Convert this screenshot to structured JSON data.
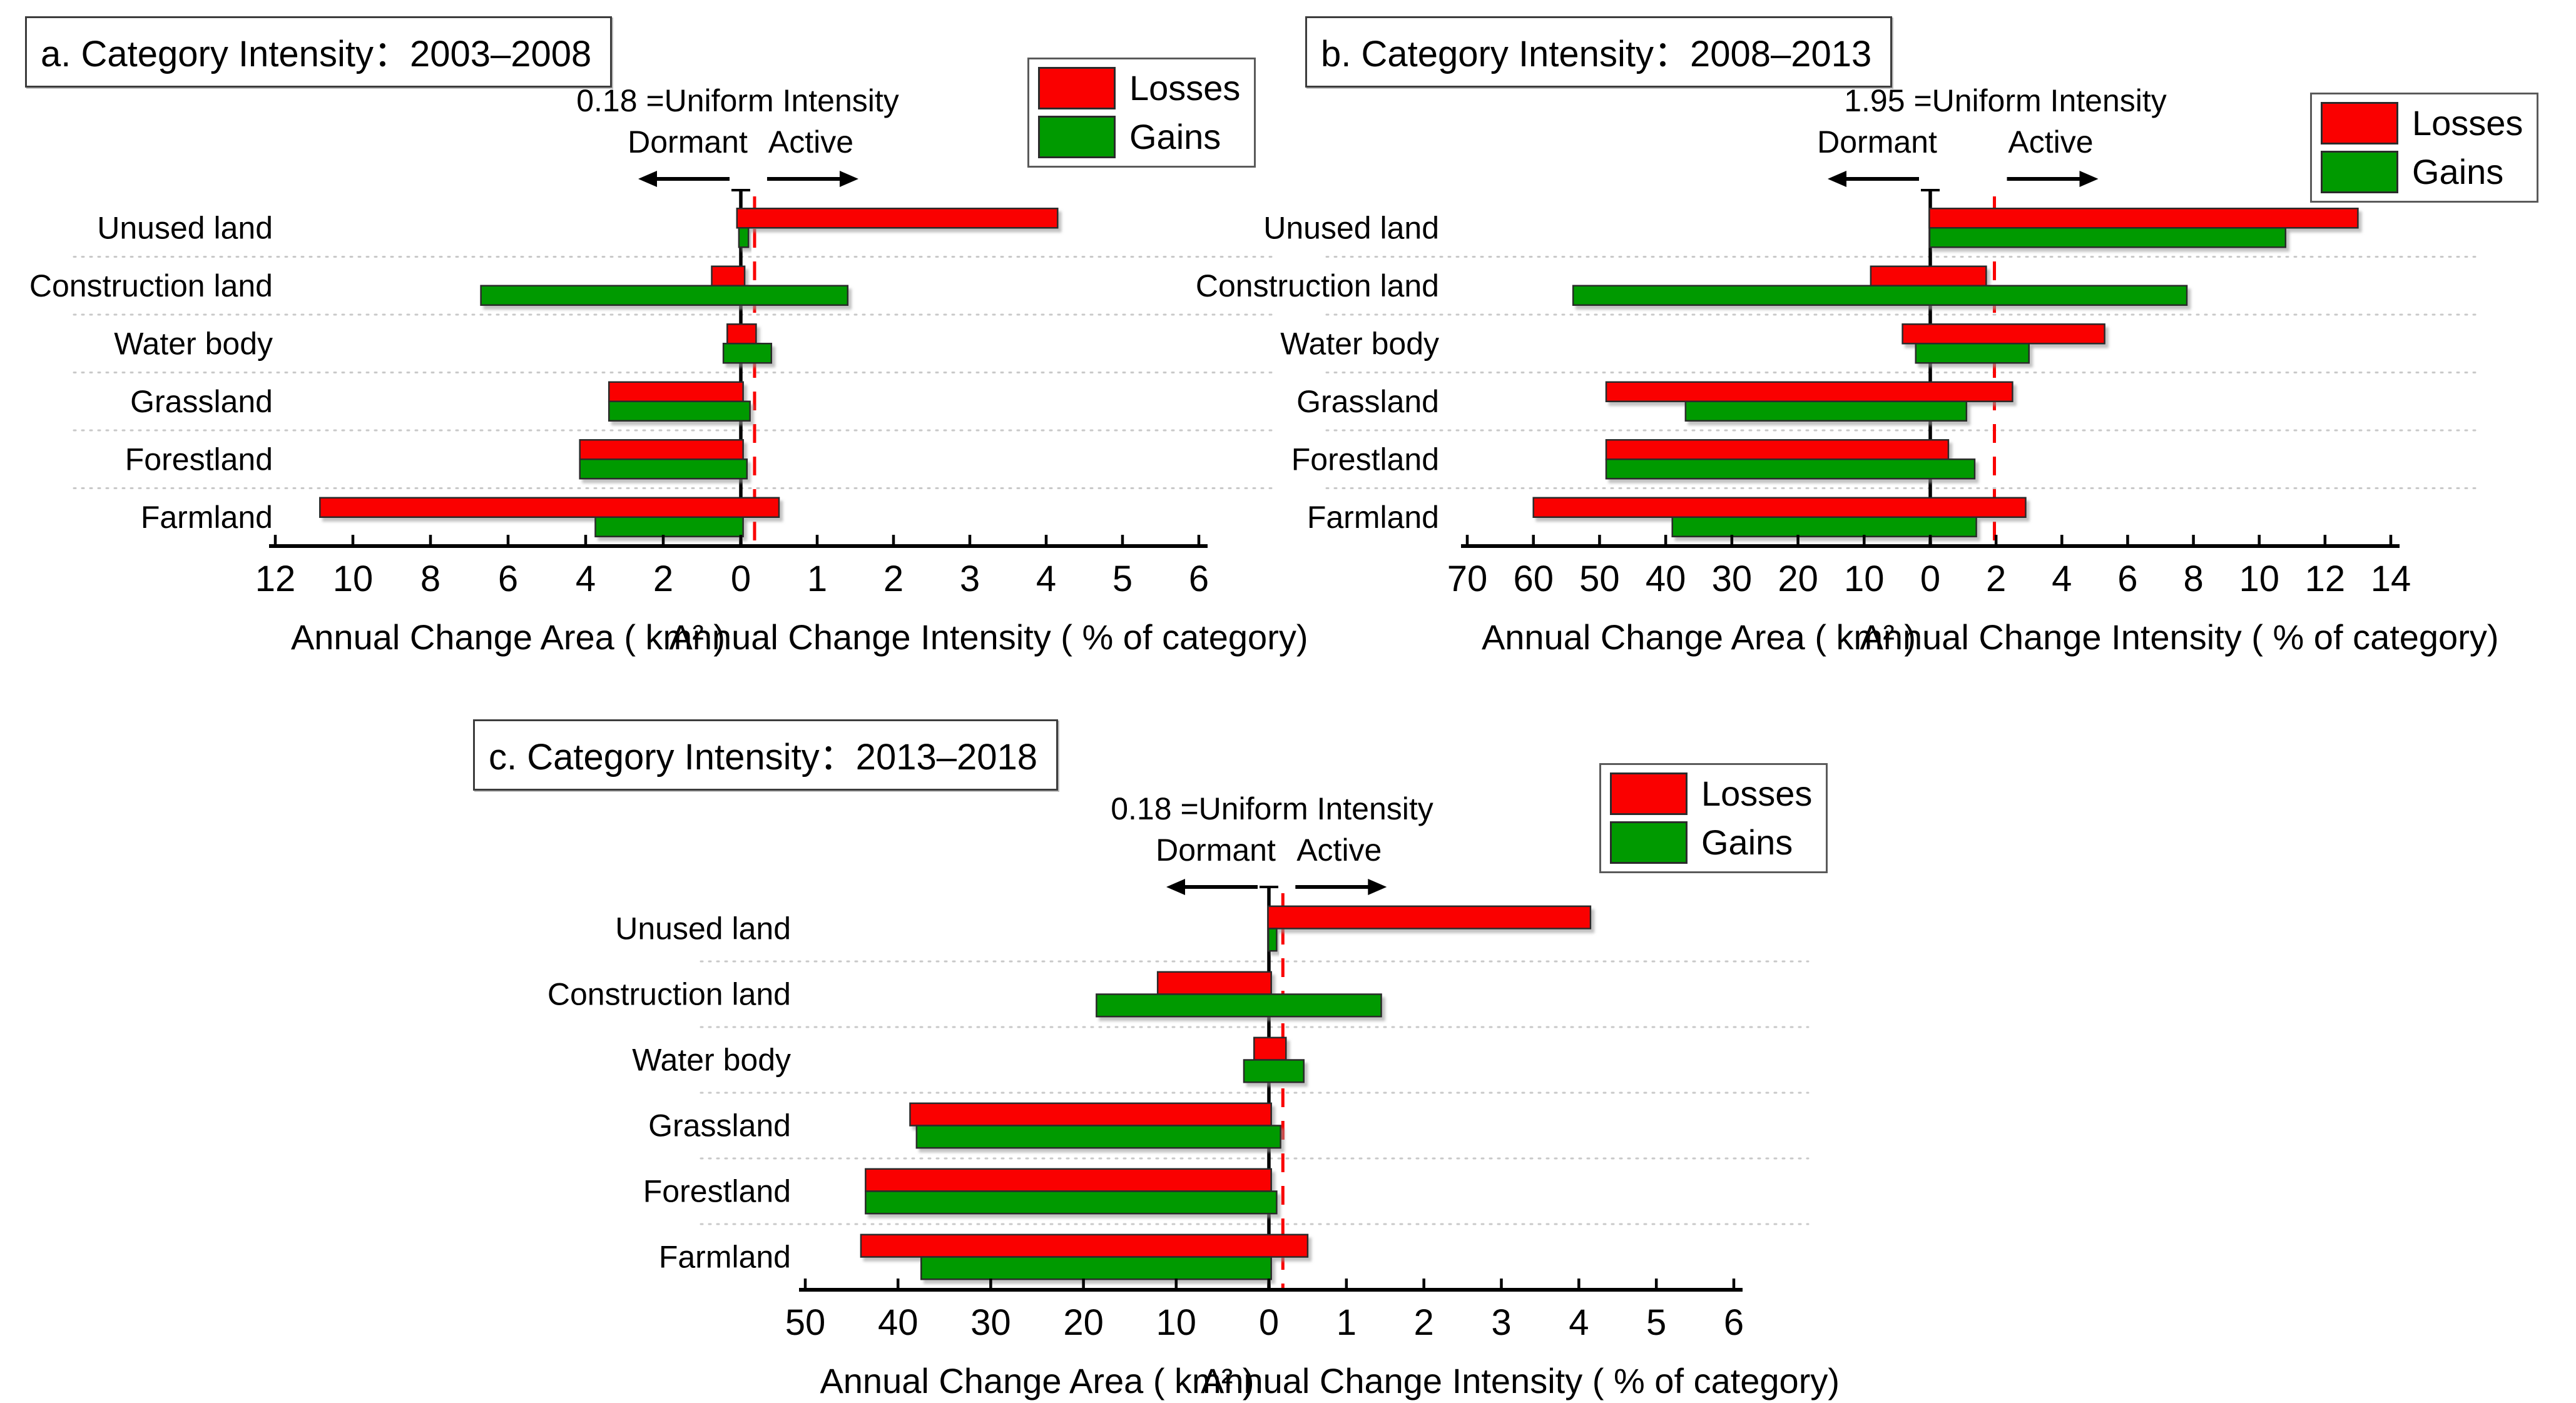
{
  "figure": {
    "legend": {
      "losses": "Losses",
      "gains": "Gains"
    },
    "colors": {
      "losses": "#fa0000",
      "gains": "#009a00",
      "uniform_line": "#fa0000",
      "axis": "#000000",
      "grid": "#c9c9c9",
      "bar_border": "#2a2a2a"
    },
    "annotations": {
      "dormant": "Dormant",
      "active": "Active"
    }
  },
  "chart_data": [
    {
      "id": "a",
      "type": "bar",
      "title": "a. Category Intensity：2003–2008",
      "uniform_intensity": 0.18,
      "uniform_label": "0.18 =Uniform Intensity",
      "area_axis": {
        "max": 12,
        "ticks": [
          12,
          10,
          8,
          6,
          4,
          2,
          0
        ],
        "label": "Annual Change Area ( km² )"
      },
      "intensity_axis": {
        "max": 6,
        "ticks": [
          1,
          2,
          3,
          4,
          5,
          6
        ],
        "label": "Annual Change Intensity ( % of category)"
      },
      "categories": [
        "Unused land",
        "Construction land",
        "Water body",
        "Grassland",
        "Forestland",
        "Farmland"
      ],
      "series": [
        {
          "name": "Losses",
          "area": [
            0.1,
            0.75,
            0.35,
            3.4,
            4.15,
            10.85
          ],
          "intensity": [
            4.15,
            0.05,
            0.2,
            0.03,
            0.03,
            0.5
          ]
        },
        {
          "name": "Gains",
          "area": [
            0.05,
            6.7,
            0.45,
            3.4,
            4.15,
            3.75
          ],
          "intensity": [
            0.1,
            1.4,
            0.4,
            0.12,
            0.08,
            0.03
          ]
        }
      ]
    },
    {
      "id": "b",
      "type": "bar",
      "title": "b. Category Intensity：2008–2013",
      "uniform_intensity": 1.95,
      "uniform_label": "1.95 =Uniform Intensity",
      "area_axis": {
        "max": 70,
        "ticks": [
          70,
          60,
          50,
          40,
          30,
          20,
          10,
          0
        ],
        "label": "Annual Change Area ( km² )"
      },
      "intensity_axis": {
        "max": 14,
        "ticks": [
          2,
          4,
          6,
          8,
          10,
          12,
          14
        ],
        "label": "Annual Change Intensity ( % of category)"
      },
      "categories": [
        "Unused land",
        "Construction land",
        "Water body",
        "Grassland",
        "Forestland",
        "Farmland"
      ],
      "series": [
        {
          "name": "Losses",
          "area": [
            0.15,
            9.0,
            4.2,
            49.0,
            49.0,
            60.0
          ],
          "intensity": [
            13.0,
            1.7,
            5.3,
            2.5,
            0.55,
            2.9
          ]
        },
        {
          "name": "Gains",
          "area": [
            0.1,
            54.0,
            2.2,
            37.0,
            49.0,
            39.0
          ],
          "intensity": [
            10.8,
            7.8,
            3.0,
            1.1,
            1.35,
            1.4
          ]
        }
      ]
    },
    {
      "id": "c",
      "type": "bar",
      "title": "c. Category Intensity：2013–2018",
      "uniform_intensity": 0.18,
      "uniform_label": "0.18 =Uniform Intensity",
      "area_axis": {
        "max": 50,
        "ticks": [
          50,
          40,
          30,
          20,
          10,
          0
        ],
        "label": "Annual Change Area ( km² )"
      },
      "intensity_axis": {
        "max": 6,
        "ticks": [
          1,
          2,
          3,
          4,
          5,
          6
        ],
        "label": "Annual Change Intensity ( % of category)"
      },
      "categories": [
        "Unused land",
        "Construction land",
        "Water body",
        "Grassland",
        "Forestland",
        "Farmland"
      ],
      "series": [
        {
          "name": "Losses",
          "area": [
            0.1,
            12.0,
            1.6,
            38.7,
            43.5,
            44.0
          ],
          "intensity": [
            4.15,
            0.03,
            0.22,
            0.03,
            0.03,
            0.5
          ]
        },
        {
          "name": "Gains",
          "area": [
            0.05,
            18.6,
            2.7,
            38.0,
            43.5,
            37.5
          ],
          "intensity": [
            0.1,
            1.45,
            0.45,
            0.15,
            0.1,
            0.03
          ]
        }
      ]
    }
  ]
}
